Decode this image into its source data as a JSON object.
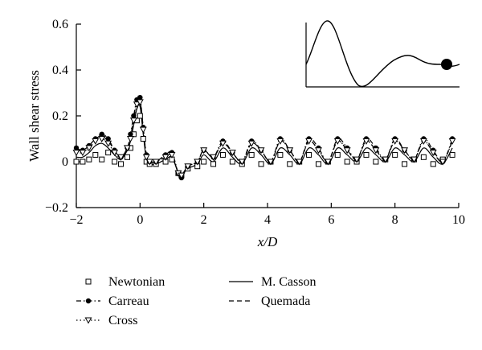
{
  "chart_data": {
    "type": "line",
    "xlabel": "x/D",
    "ylabel": "Wall shear stress",
    "xlim": [
      -2,
      10
    ],
    "ylim": [
      -0.2,
      0.6
    ],
    "xticks": [
      -2,
      0,
      2,
      4,
      6,
      8,
      10
    ],
    "xtick_labels": [
      "−2",
      "0",
      "2",
      "4",
      "6",
      "8",
      "10"
    ],
    "yticks": [
      -0.2,
      0,
      0.2,
      0.4,
      0.6
    ],
    "ytick_labels": [
      "−0.2",
      "0",
      "0.2",
      "0.4",
      "0.6"
    ],
    "grid": false,
    "legend_position": "bottom",
    "inset": "stenosis-profile sketch with filled circle marker",
    "series": [
      {
        "name": "Newtonian",
        "line": "none",
        "marker": "open-square",
        "x": [
          -2,
          -1.8,
          -1.6,
          -1.4,
          -1.2,
          -1.0,
          -0.8,
          -0.6,
          -0.4,
          -0.3,
          -0.2,
          -0.1,
          0,
          0.1,
          0.2,
          0.3,
          0.5,
          0.8,
          1.0,
          1.2,
          1.3,
          1.5,
          1.8,
          2.0,
          2.3,
          2.6,
          2.9,
          3.2,
          3.5,
          3.8,
          4.1,
          4.4,
          4.7,
          5.0,
          5.3,
          5.6,
          5.9,
          6.2,
          6.5,
          6.8,
          7.1,
          7.4,
          7.7,
          8.0,
          8.3,
          8.6,
          8.9,
          9.2,
          9.5,
          9.8
        ],
        "y": [
          0.0,
          0.0,
          0.01,
          0.03,
          0.01,
          0.04,
          0.0,
          -0.01,
          0.02,
          0.06,
          0.12,
          0.18,
          0.2,
          0.1,
          0.0,
          -0.01,
          -0.01,
          0.0,
          0.01,
          -0.05,
          -0.06,
          -0.03,
          -0.02,
          0.0,
          -0.01,
          0.03,
          0.0,
          -0.01,
          0.03,
          -0.01,
          0.0,
          0.03,
          -0.01,
          0.0,
          0.03,
          -0.01,
          0.0,
          0.03,
          0.0,
          0.0,
          0.03,
          0.0,
          0.01,
          0.03,
          -0.01,
          0.01,
          0.02,
          -0.01,
          0.01,
          0.03
        ]
      },
      {
        "name": "Carreau",
        "line": "dash-dot",
        "marker": "filled-circle",
        "x": [
          -2,
          -1.8,
          -1.6,
          -1.4,
          -1.2,
          -1.0,
          -0.8,
          -0.6,
          -0.4,
          -0.3,
          -0.2,
          -0.1,
          0,
          0.1,
          0.2,
          0.3,
          0.5,
          0.8,
          1.0,
          1.2,
          1.3,
          1.5,
          1.8,
          2.0,
          2.3,
          2.6,
          2.9,
          3.2,
          3.5,
          3.8,
          4.1,
          4.4,
          4.7,
          5.0,
          5.3,
          5.6,
          5.9,
          6.2,
          6.5,
          6.8,
          7.1,
          7.4,
          7.7,
          8.0,
          8.3,
          8.6,
          8.9,
          9.2,
          9.5,
          9.8
        ],
        "y": [
          0.06,
          0.05,
          0.07,
          0.1,
          0.12,
          0.1,
          0.05,
          0.02,
          0.06,
          0.12,
          0.2,
          0.27,
          0.28,
          0.15,
          0.03,
          0.0,
          0.0,
          0.03,
          0.04,
          -0.05,
          -0.07,
          -0.02,
          0.0,
          0.05,
          0.02,
          0.09,
          0.04,
          0.0,
          0.09,
          0.05,
          0.0,
          0.1,
          0.05,
          0.0,
          0.1,
          0.06,
          0.0,
          0.1,
          0.06,
          0.01,
          0.1,
          0.06,
          0.01,
          0.1,
          0.05,
          0.01,
          0.1,
          0.05,
          0.0,
          0.1
        ]
      },
      {
        "name": "Cross",
        "line": "dotted",
        "marker": "open-triangle-down",
        "x": [
          -2,
          -1.8,
          -1.6,
          -1.4,
          -1.2,
          -1.0,
          -0.8,
          -0.6,
          -0.4,
          -0.3,
          -0.2,
          -0.1,
          0,
          0.1,
          0.2,
          0.3,
          0.5,
          0.8,
          1.0,
          1.2,
          1.3,
          1.5,
          1.8,
          2.0,
          2.3,
          2.6,
          2.9,
          3.2,
          3.5,
          3.8,
          4.1,
          4.4,
          4.7,
          5.0,
          5.3,
          5.6,
          5.9,
          6.2,
          6.5,
          6.8,
          7.1,
          7.4,
          7.7,
          8.0,
          8.3,
          8.6,
          8.9,
          9.2,
          9.5,
          9.8
        ],
        "y": [
          0.04,
          0.04,
          0.06,
          0.09,
          0.1,
          0.08,
          0.04,
          0.02,
          0.06,
          0.1,
          0.18,
          0.25,
          0.26,
          0.14,
          0.02,
          0.0,
          0.0,
          0.02,
          0.03,
          -0.05,
          -0.06,
          -0.02,
          0.0,
          0.05,
          0.02,
          0.08,
          0.04,
          0.0,
          0.08,
          0.05,
          0.0,
          0.09,
          0.05,
          0.0,
          0.09,
          0.05,
          0.0,
          0.09,
          0.05,
          0.01,
          0.09,
          0.05,
          0.01,
          0.09,
          0.05,
          0.01,
          0.09,
          0.04,
          0.0,
          0.09
        ]
      },
      {
        "name": "M. Casson",
        "line": "solid",
        "marker": "none",
        "x": [
          -2,
          -1.8,
          -1.6,
          -1.4,
          -1.2,
          -1.0,
          -0.8,
          -0.6,
          -0.4,
          -0.3,
          -0.2,
          -0.1,
          0,
          0.1,
          0.2,
          0.3,
          0.5,
          0.8,
          1.0,
          1.2,
          1.3,
          1.5,
          1.8,
          2.0,
          2.3,
          2.6,
          2.9,
          3.2,
          3.5,
          3.8,
          4.1,
          4.4,
          4.7,
          5.0,
          5.3,
          5.6,
          5.9,
          6.2,
          6.5,
          6.8,
          7.1,
          7.4,
          7.7,
          8.0,
          8.3,
          8.6,
          8.9,
          9.2,
          9.5,
          9.8
        ],
        "y": [
          0.02,
          0.02,
          0.04,
          0.07,
          0.08,
          0.06,
          0.03,
          0.01,
          0.05,
          0.09,
          0.16,
          0.23,
          0.24,
          0.12,
          0.01,
          -0.01,
          -0.01,
          0.01,
          0.02,
          -0.05,
          -0.06,
          -0.03,
          -0.01,
          0.03,
          0.0,
          0.06,
          0.02,
          -0.01,
          0.06,
          0.03,
          -0.01,
          0.06,
          0.03,
          -0.01,
          0.06,
          0.03,
          -0.01,
          0.06,
          0.03,
          0.0,
          0.06,
          0.03,
          0.0,
          0.06,
          0.03,
          0.0,
          0.06,
          0.02,
          -0.01,
          0.06
        ]
      },
      {
        "name": "Quemada",
        "line": "dashed",
        "marker": "none",
        "x": [
          -2,
          -1.8,
          -1.6,
          -1.4,
          -1.2,
          -1.0,
          -0.8,
          -0.6,
          -0.4,
          -0.3,
          -0.2,
          -0.1,
          0,
          0.1,
          0.2,
          0.3,
          0.5,
          0.8,
          1.0,
          1.2,
          1.3,
          1.5,
          1.8,
          2.0,
          2.3,
          2.6,
          2.9,
          3.2,
          3.5,
          3.8,
          4.1,
          4.4,
          4.7,
          5.0,
          5.3,
          5.6,
          5.9,
          6.2,
          6.5,
          6.8,
          7.1,
          7.4,
          7.7,
          8.0,
          8.3,
          8.6,
          8.9,
          9.2,
          9.5,
          9.8
        ],
        "y": [
          0.05,
          0.05,
          0.07,
          0.1,
          0.11,
          0.09,
          0.05,
          0.02,
          0.06,
          0.11,
          0.19,
          0.26,
          0.27,
          0.14,
          0.03,
          0.0,
          0.0,
          0.02,
          0.03,
          -0.05,
          -0.06,
          -0.02,
          0.0,
          0.05,
          0.02,
          0.08,
          0.04,
          0.0,
          0.08,
          0.05,
          0.0,
          0.09,
          0.05,
          0.0,
          0.09,
          0.05,
          0.0,
          0.09,
          0.05,
          0.01,
          0.09,
          0.05,
          0.01,
          0.09,
          0.05,
          0.01,
          0.09,
          0.04,
          0.0,
          0.09
        ]
      }
    ]
  }
}
